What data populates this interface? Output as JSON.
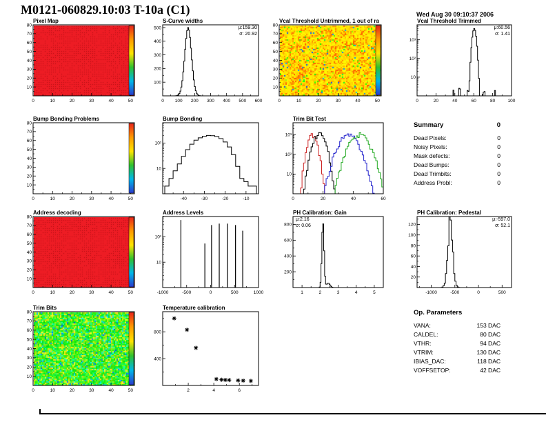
{
  "page": {
    "title": "M0121-060829.10:03 T-10a (C1)",
    "datetime": "Wed Aug 30 09:10:37 2006"
  },
  "palette": [
    "#2a3acd",
    "#00b7e8",
    "#2fc12f",
    "#ffe400",
    "#ff9a00",
    "#e8251a"
  ],
  "summary": {
    "heading": "Summary",
    "heading_value": "0",
    "rows": [
      {
        "label": "Dead Pixels:",
        "value": "0"
      },
      {
        "label": "Noisy Pixels:",
        "value": "0"
      },
      {
        "label": "Mask defects:",
        "value": "0"
      },
      {
        "label": "Dead Bumps:",
        "value": "0"
      },
      {
        "label": "Dead Trimbits:",
        "value": "0"
      },
      {
        "label": "Address Probl:",
        "value": "0"
      }
    ]
  },
  "op_parameters": {
    "heading": "Op. Parameters",
    "rows": [
      {
        "label": "VANA:",
        "value": "153 DAC"
      },
      {
        "label": "CALDEL:",
        "value": "80 DAC"
      },
      {
        "label": "VTHR:",
        "value": "94 DAC"
      },
      {
        "label": "VTRIM:",
        "value": "130 DAC"
      },
      {
        "label": "IBIAS_DAC:",
        "value": "118 DAC"
      },
      {
        "label": "VOFFSETOP:",
        "value": "42 DAC"
      }
    ]
  },
  "chart_data": [
    {
      "id": "pixel-map",
      "type": "heatmap",
      "title": "Pixel Map",
      "style": "uniform-red",
      "base_color": "#ed1c24",
      "xlim": [
        0,
        52
      ],
      "ylim": [
        0,
        80
      ],
      "x_ticks": [
        0,
        10,
        20,
        30,
        40,
        50
      ],
      "y_ticks": [
        10,
        20,
        30,
        40,
        50,
        60,
        70,
        80
      ],
      "colorbar": true
    },
    {
      "id": "s-curve-widths",
      "type": "hist",
      "title": "S-Curve widths",
      "mu": 159.3,
      "sigma": 20.92,
      "peak": 500,
      "bin_width": 6,
      "stats": {
        "mu": "μ:159.30",
        "sigma": "σ: 20.92"
      },
      "xlim": [
        0,
        600
      ],
      "x_ticks": [
        0,
        100,
        200,
        300,
        400,
        500,
        600
      ],
      "ylim": [
        0,
        520
      ],
      "y_ticks": [
        100,
        200,
        300,
        400,
        500
      ]
    },
    {
      "id": "vcal-threshold-untrimmed",
      "type": "heatmap",
      "title": "Vcal Threshold Untrimmed, 1 out of ra",
      "style": "yellow-noise",
      "base_color": "#ffd400",
      "xlim": [
        0,
        52
      ],
      "ylim": [
        0,
        80
      ],
      "x_ticks": [
        0,
        10,
        20,
        30,
        40,
        50
      ],
      "y_ticks": [
        10,
        20,
        30,
        40,
        50,
        60,
        70,
        80
      ],
      "colorbar": true
    },
    {
      "id": "vcal-threshold-trimmed",
      "type": "hist",
      "title": "Vcal Threshold Trimmed",
      "log_y": true,
      "mu": 60.56,
      "sigma": 1.41,
      "peak": 4000,
      "bin_width": 1,
      "base_bumps": true,
      "ymax_exp": 3.8,
      "y_decades": [
        "10",
        "10²",
        "10³"
      ],
      "stats": {
        "mu": "μ:60.56",
        "sigma": "σ: 1.41"
      },
      "xlim": [
        0,
        100
      ],
      "x_ticks": [
        0,
        20,
        40,
        60,
        80,
        100
      ]
    },
    {
      "id": "bump-bonding-problems",
      "type": "heatmap",
      "title": "Bump Bonding Problems",
      "style": "empty",
      "xlim": [
        0,
        52
      ],
      "ylim": [
        0,
        80
      ],
      "x_ticks": [
        0,
        10,
        20,
        30,
        40,
        50
      ],
      "y_ticks": [
        10,
        20,
        30,
        40,
        50,
        60,
        70,
        80
      ],
      "colorbar": true
    },
    {
      "id": "bump-bonding",
      "type": "hist",
      "title": "Bump Bonding",
      "log_y": true,
      "ymax_exp": 2.8,
      "y_decades": [
        "10",
        "10²"
      ],
      "xlim": [
        -50,
        -4
      ],
      "x_ticks": [
        -40,
        -30,
        -20,
        -10
      ],
      "bins_x0": -49,
      "bin_width": 2,
      "bins": [
        2,
        4,
        8,
        15,
        30,
        55,
        90,
        130,
        160,
        185,
        200,
        195,
        180,
        150,
        110,
        70,
        35,
        12,
        4,
        3,
        2,
        2
      ]
    },
    {
      "id": "trim-bit-test",
      "type": "multi-hist",
      "title": "Trim Bit Test",
      "log_y": true,
      "ymax_exp": 3.6,
      "y_decades": [
        "10",
        "10²",
        "10³"
      ],
      "xlim": [
        0,
        60
      ],
      "x_ticks": [
        0,
        20,
        40,
        60
      ],
      "bin_width": 1,
      "series": [
        {
          "name": "red",
          "color": "#cc2222",
          "mu": 13,
          "sigma": 2.2,
          "peak": 900
        },
        {
          "name": "black",
          "color": "#000000",
          "mu": 17.5,
          "sigma": 2.8,
          "peak": 1100
        },
        {
          "name": "blue",
          "color": "#2222cc",
          "mu": 37,
          "sigma": 4.5,
          "peak": 900
        },
        {
          "name": "green",
          "color": "#22aa22",
          "mu": 44,
          "sigma": 4.5,
          "peak": 1000
        }
      ]
    },
    {
      "id": "address-decoding",
      "type": "heatmap",
      "title": "Address decoding",
      "style": "uniform-red",
      "base_color": "#ed1c24",
      "xlim": [
        0,
        52
      ],
      "ylim": [
        0,
        80
      ],
      "x_ticks": [
        0,
        10,
        20,
        30,
        40,
        50
      ],
      "y_ticks": [
        10,
        20,
        30,
        40,
        50,
        60,
        70,
        80
      ],
      "colorbar": true
    },
    {
      "id": "address-levels",
      "type": "spikes",
      "title": "Address Levels",
      "log_y": true,
      "ymax_exp": 2.8,
      "y_decades": [
        "10",
        "10²"
      ],
      "xlim": [
        -1000,
        1000
      ],
      "x_ticks": [
        -1000,
        -500,
        0,
        500,
        1000
      ],
      "spikes": [
        {
          "x": -620,
          "h": 0.95
        },
        {
          "x": -120,
          "h": 0.62
        },
        {
          "x": 20,
          "h": 0.88
        },
        {
          "x": 180,
          "h": 0.9
        },
        {
          "x": 350,
          "h": 0.9
        },
        {
          "x": 520,
          "h": 0.88
        },
        {
          "x": 670,
          "h": 0.8
        }
      ]
    },
    {
      "id": "ph-calibration-gain",
      "type": "hist",
      "title": "PH Calibration: Gain",
      "mu": 2.16,
      "sigma": 0.06,
      "peak": 830,
      "bin_width": 0.05,
      "secondary": {
        "mu": 2.45,
        "sigma": 0.1,
        "peak": 55
      },
      "stats": {
        "mu": "μ:2.16",
        "sigma": "σ: 0.06"
      },
      "xlim": [
        0.5,
        5.5
      ],
      "x_ticks": [
        1,
        2,
        3,
        4,
        5
      ],
      "ylim": [
        0,
        900
      ],
      "y_ticks": [
        200,
        400,
        600,
        800
      ]
    },
    {
      "id": "ph-calibration-pedestal",
      "type": "hist",
      "title": "PH Calibration: Pedestal",
      "mu": -597.0,
      "sigma": 52.1,
      "peak": 126,
      "bin_width": 25,
      "noise": true,
      "stats": {
        "mu": "μ:-597.0",
        "sigma": "σ: 52.1"
      },
      "xlim": [
        -1300,
        700
      ],
      "x_ticks": [
        -1000,
        -500,
        0,
        500
      ],
      "ylim": [
        0,
        135
      ],
      "y_ticks": [
        20,
        40,
        60,
        80,
        100,
        120
      ]
    },
    {
      "id": "trim-bits",
      "type": "heatmap",
      "title": "Trim Bits",
      "style": "green-noise",
      "base_color": "#3ec73e",
      "xlim": [
        0,
        52
      ],
      "ylim": [
        0,
        80
      ],
      "x_ticks": [
        0,
        10,
        20,
        30,
        40,
        50
      ],
      "y_ticks": [
        10,
        20,
        30,
        40,
        50,
        60,
        70,
        80
      ],
      "colorbar": true
    },
    {
      "id": "temperature-calibration",
      "type": "scatter",
      "title": "Temperature calibration",
      "marker": "asterisk",
      "xlim": [
        0,
        7.5
      ],
      "x_ticks": [
        2,
        4,
        6
      ],
      "ylim": [
        0,
        1100
      ],
      "y_ticks": [
        400,
        800
      ],
      "points": [
        [
          0.9,
          1000
        ],
        [
          1.9,
          830
        ],
        [
          2.6,
          560
        ],
        [
          4.2,
          95
        ],
        [
          4.6,
          85
        ],
        [
          4.9,
          82
        ],
        [
          5.2,
          80
        ],
        [
          5.9,
          75
        ],
        [
          6.3,
          72
        ],
        [
          6.9,
          68
        ]
      ]
    }
  ]
}
